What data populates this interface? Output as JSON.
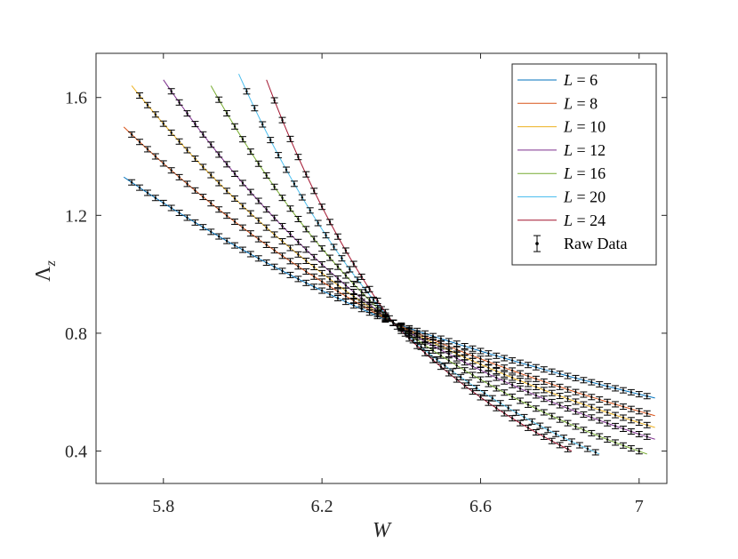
{
  "chart_data": {
    "type": "line",
    "xlabel": "W",
    "ylabel_main": "Λ",
    "ylabel_sub": "z",
    "xlim": [
      5.63,
      7.07
    ],
    "ylim": [
      0.29,
      1.75
    ],
    "xticks": [
      5.8,
      6.2,
      6.6,
      7.0
    ],
    "xtick_labels": [
      "5.8",
      "6.2",
      "6.6",
      "7"
    ],
    "yticks": [
      0.4,
      0.8,
      1.2,
      1.6
    ],
    "ytick_labels": [
      "0.4",
      "0.8",
      "1.2",
      "1.6"
    ],
    "grid": false,
    "legend_position": "top-right",
    "crossing_point": {
      "x": 6.38,
      "y": 0.835
    },
    "series": [
      {
        "name": "L = 6",
        "L": "6",
        "color": "#0072BD",
        "x_range": [
          5.7,
          7.04
        ],
        "y_start": 1.33,
        "y_end": 0.58
      },
      {
        "name": "L = 8",
        "L": "8",
        "color": "#D95319",
        "x_range": [
          5.7,
          7.04
        ],
        "y_start": 1.5,
        "y_end": 0.52
      },
      {
        "name": "L = 10",
        "L": "10",
        "color": "#EDB120",
        "x_range": [
          5.72,
          7.04
        ],
        "y_start": 1.64,
        "y_end": 0.48
      },
      {
        "name": "L = 12",
        "L": "12",
        "color": "#7E2F8E",
        "x_range": [
          5.8,
          7.04
        ],
        "y_start": 1.66,
        "y_end": 0.44
      },
      {
        "name": "L = 16",
        "L": "16",
        "color": "#77AC30",
        "x_range": [
          5.92,
          7.02
        ],
        "y_start": 1.64,
        "y_end": 0.39
      },
      {
        "name": "L = 20",
        "L": "20",
        "color": "#4DBEEE",
        "x_range": [
          5.99,
          6.9
        ],
        "y_start": 1.68,
        "y_end": 0.39
      },
      {
        "name": "L = 24",
        "L": "24",
        "color": "#A2142F",
        "x_range": [
          6.06,
          6.83
        ],
        "y_start": 1.66,
        "y_end": 0.4
      }
    ],
    "raw_data_label": "Raw Data",
    "raw_data_step": 0.02
  }
}
